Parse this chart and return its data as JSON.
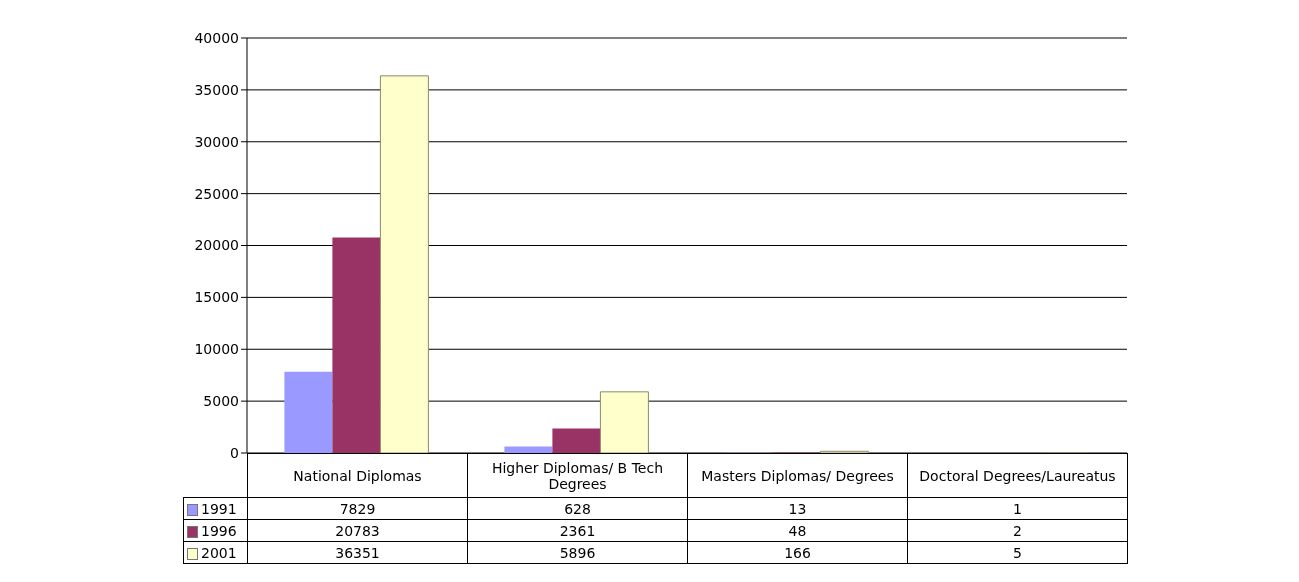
{
  "chart_data": {
    "type": "bar",
    "categories": [
      "National Diplomas",
      "Higher Diplomas/ B Tech Degrees",
      "Masters Diplomas/ Degrees",
      "Doctoral Degrees/Laureatus"
    ],
    "series": [
      {
        "name": "1991",
        "color": "#9999ff",
        "values": [
          7829,
          628,
          13,
          1
        ]
      },
      {
        "name": "1996",
        "color": "#993366",
        "values": [
          20783,
          2361,
          48,
          2
        ]
      },
      {
        "name": "2001",
        "color": "#ffffcc",
        "values": [
          36351,
          5896,
          166,
          5
        ]
      }
    ],
    "ylim": [
      0,
      40000
    ],
    "yticks": [
      0,
      5000,
      10000,
      15000,
      20000,
      25000,
      30000,
      35000,
      40000
    ],
    "grid": "y",
    "legend": "bottom",
    "data_labels": true
  }
}
